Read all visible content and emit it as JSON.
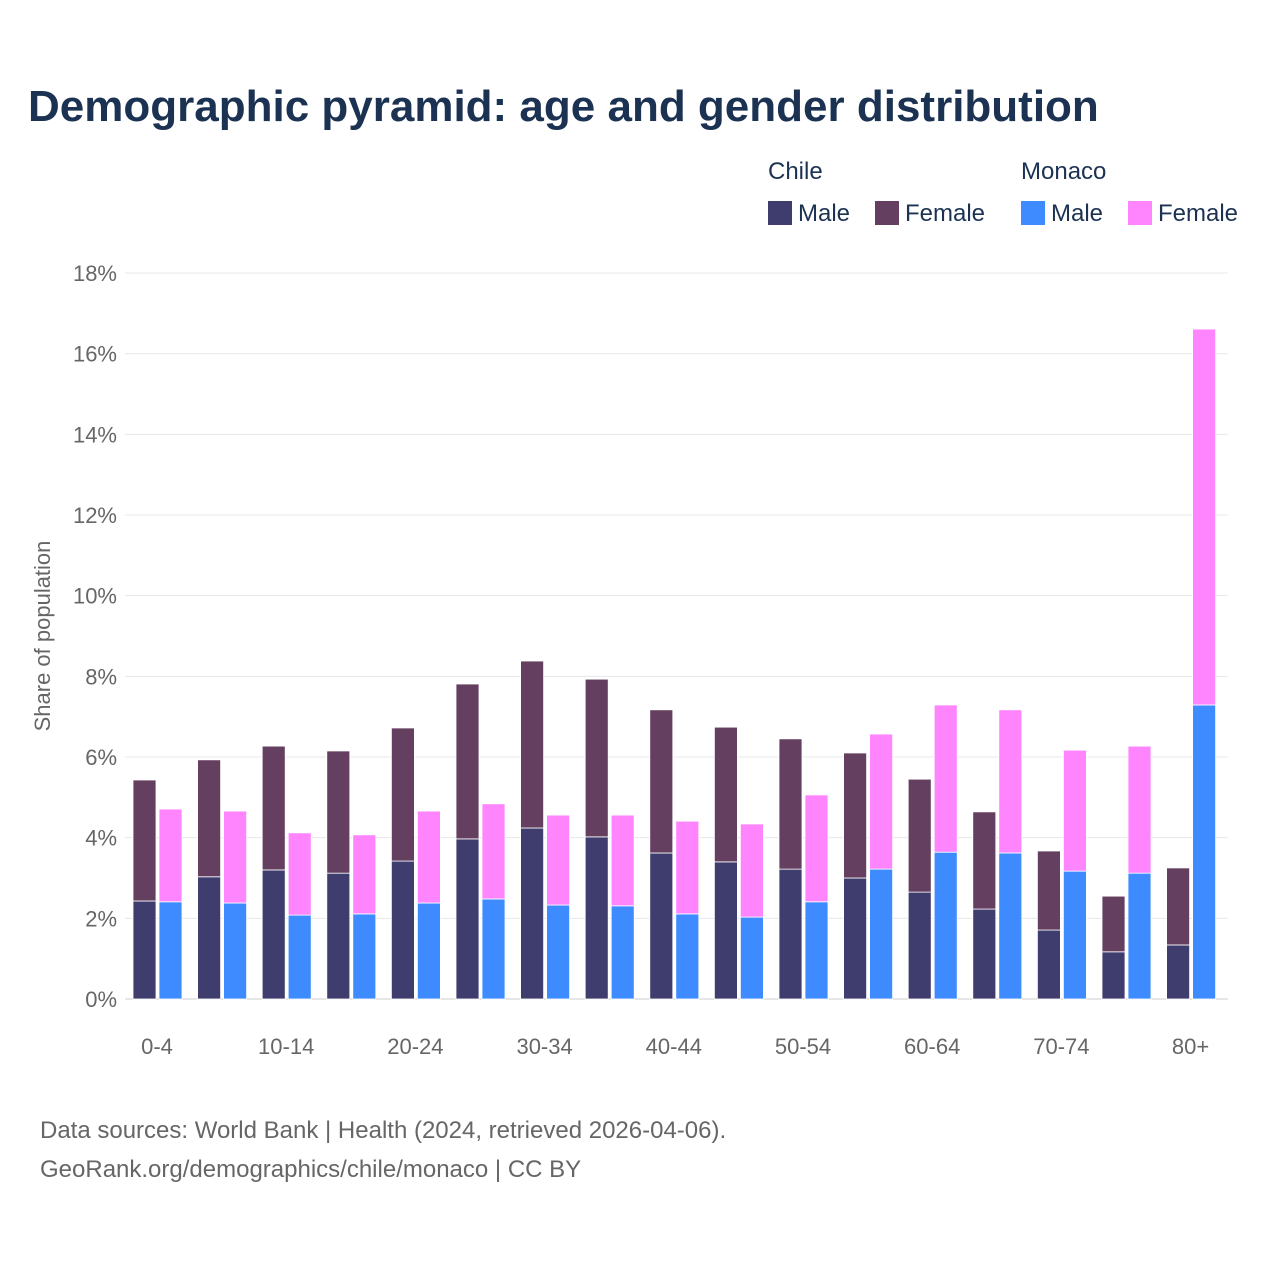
{
  "chart_data": {
    "type": "bar",
    "title": "Demographic pyramid: age and gender distribution",
    "ylabel": "Share of population",
    "xlabel": "",
    "ylim": [
      0,
      18
    ],
    "yticks": [
      "0%",
      "2%",
      "4%",
      "6%",
      "8%",
      "10%",
      "12%",
      "14%",
      "16%",
      "18%"
    ],
    "ytick_values": [
      0,
      2,
      4,
      6,
      8,
      10,
      12,
      14,
      16,
      18
    ],
    "grid": true,
    "categories": [
      "0-4",
      "5-9",
      "10-14",
      "15-19",
      "20-24",
      "25-29",
      "30-34",
      "35-39",
      "40-44",
      "45-49",
      "50-54",
      "55-59",
      "60-64",
      "65-69",
      "70-74",
      "75-79",
      "80+"
    ],
    "xtick_labels": [
      "0-4",
      "10-14",
      "20-24",
      "30-34",
      "40-44",
      "50-54",
      "60-64",
      "70-74",
      "80+"
    ],
    "legend_placement": "top-right",
    "groups": [
      {
        "name": "Chile",
        "series": [
          {
            "name": "Male",
            "color": "#3f3d6e",
            "values": [
              2.43,
              3.03,
              3.2,
              3.12,
              3.42,
              3.97,
              4.24,
              4.02,
              3.62,
              3.4,
              3.22,
              3.0,
              2.65,
              2.23,
              1.71,
              1.17,
              1.34
            ]
          },
          {
            "name": "Female",
            "color": "#653f5f",
            "values": [
              3.0,
              2.9,
              3.07,
              3.03,
              3.3,
              3.84,
              4.14,
              3.91,
              3.55,
              3.34,
              3.23,
              3.1,
              2.8,
              2.41,
              1.96,
              1.38,
              1.91
            ]
          }
        ]
      },
      {
        "name": "Monaco",
        "series": [
          {
            "name": "Male",
            "color": "#3d8bff",
            "values": [
              2.41,
              2.38,
              2.08,
              2.11,
              2.38,
              2.48,
              2.33,
              2.31,
              2.11,
              2.03,
              2.41,
              3.22,
              3.64,
              3.62,
              3.17,
              3.12,
              7.29
            ]
          },
          {
            "name": "Female",
            "color": "#ff85ff",
            "values": [
              2.3,
              2.28,
              2.04,
              1.96,
              2.28,
              2.36,
              2.23,
              2.25,
              2.3,
              2.31,
              2.65,
              3.35,
              3.65,
              3.55,
              3.0,
              3.15,
              9.32
            ]
          }
        ]
      }
    ]
  },
  "footer": {
    "line1": "Data sources: World Bank | Health (2024, retrieved 2026-04-06).",
    "line2": "GeoRank.org/demographics/chile/monaco | CC BY"
  }
}
